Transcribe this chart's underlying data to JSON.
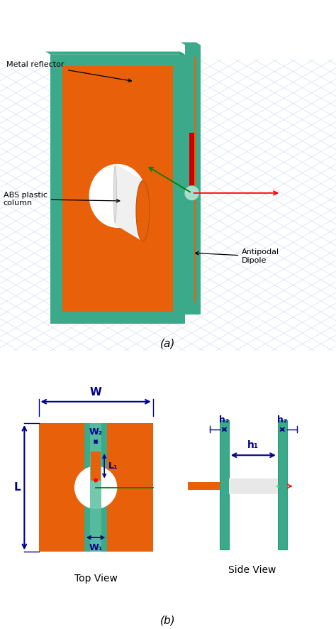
{
  "bg_color": "#ffffff",
  "orange": "#E8610A",
  "green": "#3CB371",
  "dark_green": "#2E8B57",
  "teal": "#3aaa8a",
  "teal2": "#2d9975",
  "blue": "#00008B",
  "red": "#cc0000",
  "light_gray": "#d8d8d8",
  "white": "#ffffff",
  "grid_color": "#c5d5e5",
  "label_a": "(a)",
  "label_b": "(b)",
  "top_view_label": "Top View",
  "side_view_label": "Side View",
  "annot_metal": "Metal reflector",
  "annot_abs": "ABS plastic\ncolumn",
  "annot_antipodal": "Antipodal\nDipole",
  "dim_W": "W",
  "dim_L": "L",
  "dim_W1": "W₁",
  "dim_W2": "W₂",
  "dim_L1": "L₁",
  "dim_h1": "h₁",
  "dim_h2": "h₂"
}
